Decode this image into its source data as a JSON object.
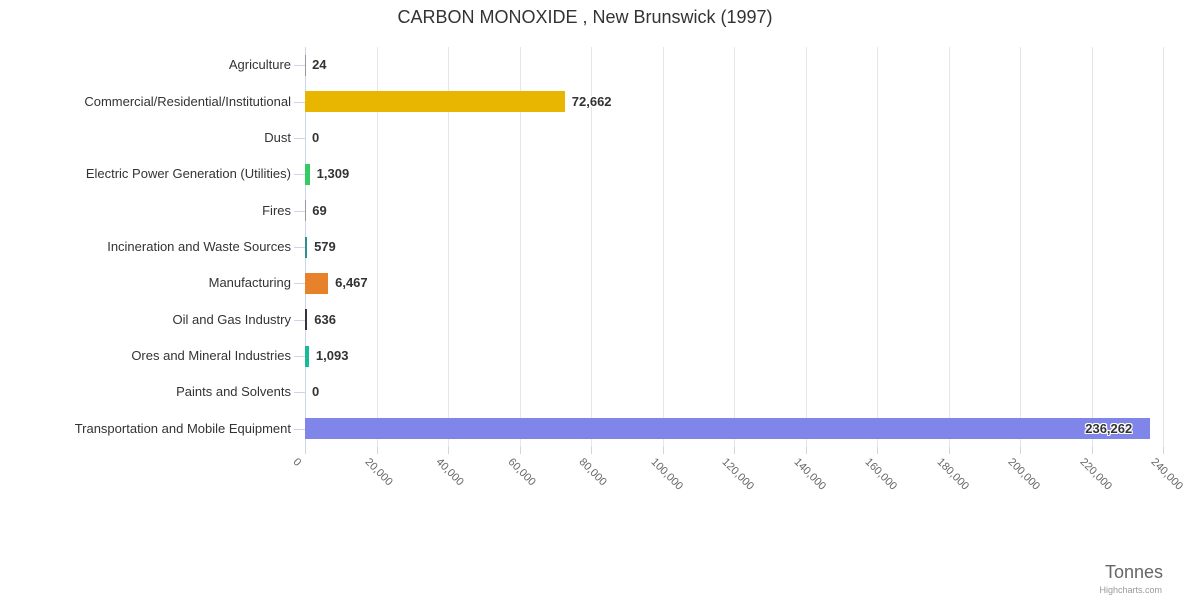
{
  "title": "CARBON MONOXIDE , New Brunswick (1997)",
  "axis_title": "Tonnes",
  "credits": "Highcharts.com",
  "colors": {
    "title_text": "#333333",
    "category_text": "#333333",
    "value_text": "#333333",
    "tick_text": "#666666",
    "axis_line": "#ccd6eb",
    "gridline": "#e6e6e6",
    "axis_title_text": "#666666",
    "credits_text": "#999999"
  },
  "chart_data": {
    "type": "bar",
    "orientation": "horizontal",
    "title": "CARBON MONOXIDE , New Brunswick (1997)",
    "xlabel": "Tonnes",
    "ylabel": "",
    "xlim": [
      0,
      240000
    ],
    "tick_interval": 20000,
    "grid": true,
    "legend": "none",
    "categories": [
      "Agriculture",
      "Commercial/Residential/Institutional",
      "Dust",
      "Electric Power Generation (Utilities)",
      "Fires",
      "Incineration and Waste Sources",
      "Manufacturing",
      "Oil and Gas Industry",
      "Ores and Mineral Industries",
      "Paints and Solvents",
      "Transportation and Mobile Equipment"
    ],
    "values": [
      24,
      72662,
      0,
      1309,
      69,
      579,
      6467,
      636,
      1093,
      0,
      236262
    ],
    "value_labels": [
      "24",
      "72,662",
      "0",
      "1,309",
      "69",
      "579",
      "6,467",
      "636",
      "1,093",
      "0",
      "236,262"
    ],
    "bar_colors": [
      "#999999",
      "#e8b500",
      "#999999",
      "#33cb62",
      "#999999",
      "#2b908f",
      "#e7822a",
      "#35363a",
      "#17bb95",
      "#999999",
      "#8085e9"
    ],
    "tick_labels": [
      "0",
      "20,000",
      "40,000",
      "60,000",
      "80,000",
      "100,000",
      "120,000",
      "140,000",
      "160,000",
      "180,000",
      "200,000",
      "220,000",
      "240,000"
    ]
  }
}
